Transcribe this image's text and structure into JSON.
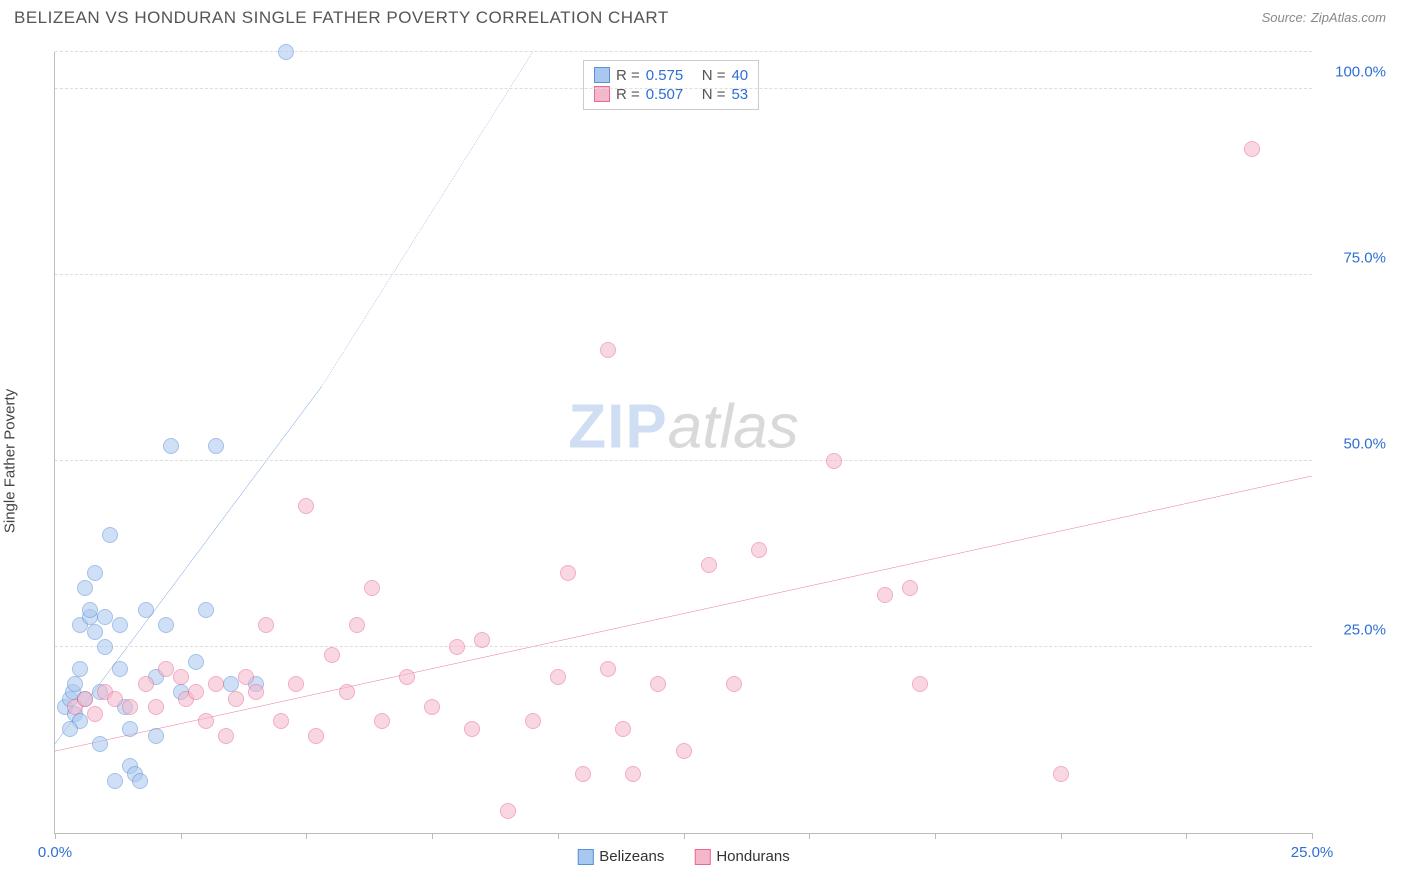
{
  "header": {
    "title": "BELIZEAN VS HONDURAN SINGLE FATHER POVERTY CORRELATION CHART",
    "source_label": "Source:",
    "source_name": "ZipAtlas.com"
  },
  "ylabel": "Single Father Poverty",
  "watermark": {
    "zip": "ZIP",
    "atlas": "atlas"
  },
  "chart": {
    "type": "scatter",
    "xlim": [
      0,
      25
    ],
    "ylim": [
      0,
      105
    ],
    "x_ticks": [
      0,
      2.5,
      5,
      7.5,
      10,
      12.5,
      15,
      17.5,
      20,
      22.5,
      25
    ],
    "x_tick_labels": {
      "0": "0.0%",
      "25": "25.0%"
    },
    "y_gridlines": [
      25,
      50,
      75,
      100,
      105
    ],
    "y_tick_labels": {
      "25": "25.0%",
      "50": "50.0%",
      "75": "75.0%",
      "100": "100.0%"
    },
    "x_label_color": "#2e6fd4",
    "y_label_color": "#2e6fd4",
    "grid_color": "#dddddd",
    "axis_color": "#bbbbbb",
    "background_color": "#ffffff",
    "point_radius": 8,
    "point_opacity": 0.55,
    "series": [
      {
        "name": "Belizeans",
        "color_fill": "#a8c8f0",
        "color_stroke": "#5b8fd6",
        "R": "0.575",
        "N": "40",
        "trend": {
          "x1": 0,
          "y1": 12,
          "x2": 5.3,
          "y2": 60,
          "dash_to_x": 9.5,
          "dash_to_y": 105,
          "stroke": "#2e6fd4",
          "width": 2
        },
        "points": [
          [
            0.2,
            17
          ],
          [
            0.3,
            18
          ],
          [
            0.35,
            19
          ],
          [
            0.4,
            16
          ],
          [
            0.4,
            20
          ],
          [
            0.5,
            15
          ],
          [
            0.5,
            22
          ],
          [
            0.5,
            28
          ],
          [
            0.6,
            18
          ],
          [
            0.7,
            29
          ],
          [
            0.7,
            30
          ],
          [
            0.8,
            27
          ],
          [
            0.8,
            35
          ],
          [
            0.9,
            19
          ],
          [
            1.0,
            29
          ],
          [
            1.0,
            25
          ],
          [
            1.1,
            40
          ],
          [
            1.2,
            7
          ],
          [
            1.3,
            28
          ],
          [
            1.3,
            22
          ],
          [
            1.5,
            9
          ],
          [
            1.5,
            14
          ],
          [
            1.6,
            8
          ],
          [
            1.7,
            7
          ],
          [
            1.8,
            30
          ],
          [
            2.0,
            21
          ],
          [
            2.0,
            13
          ],
          [
            2.2,
            28
          ],
          [
            2.3,
            52
          ],
          [
            2.5,
            19
          ],
          [
            2.8,
            23
          ],
          [
            3.0,
            30
          ],
          [
            3.2,
            52
          ],
          [
            3.5,
            20
          ],
          [
            4.0,
            20
          ],
          [
            4.6,
            105
          ],
          [
            0.3,
            14
          ],
          [
            0.6,
            33
          ],
          [
            0.9,
            12
          ],
          [
            1.4,
            17
          ]
        ]
      },
      {
        "name": "Hondurans",
        "color_fill": "#f5b8cb",
        "color_stroke": "#e86a93",
        "R": "0.507",
        "N": "53",
        "trend": {
          "x1": 0,
          "y1": 11,
          "x2": 25,
          "y2": 48,
          "stroke": "#e13d73",
          "width": 2
        },
        "points": [
          [
            0.4,
            17
          ],
          [
            0.6,
            18
          ],
          [
            0.8,
            16
          ],
          [
            1.0,
            19
          ],
          [
            1.2,
            18
          ],
          [
            1.5,
            17
          ],
          [
            1.8,
            20
          ],
          [
            2.0,
            17
          ],
          [
            2.2,
            22
          ],
          [
            2.5,
            21
          ],
          [
            2.6,
            18
          ],
          [
            2.8,
            19
          ],
          [
            3.0,
            15
          ],
          [
            3.2,
            20
          ],
          [
            3.4,
            13
          ],
          [
            3.6,
            18
          ],
          [
            3.8,
            21
          ],
          [
            4.0,
            19
          ],
          [
            4.2,
            28
          ],
          [
            4.5,
            15
          ],
          [
            4.8,
            20
          ],
          [
            5.0,
            44
          ],
          [
            5.2,
            13
          ],
          [
            5.5,
            24
          ],
          [
            5.8,
            19
          ],
          [
            6.0,
            28
          ],
          [
            6.3,
            33
          ],
          [
            6.5,
            15
          ],
          [
            7.0,
            21
          ],
          [
            7.5,
            17
          ],
          [
            8.0,
            25
          ],
          [
            8.3,
            14
          ],
          [
            8.5,
            26
          ],
          [
            9.0,
            3
          ],
          [
            9.5,
            15
          ],
          [
            10.0,
            21
          ],
          [
            10.2,
            35
          ],
          [
            10.5,
            8
          ],
          [
            11.0,
            65
          ],
          [
            11.0,
            22
          ],
          [
            11.3,
            14
          ],
          [
            11.5,
            8
          ],
          [
            12.0,
            20
          ],
          [
            12.5,
            11
          ],
          [
            13.0,
            36
          ],
          [
            13.5,
            20
          ],
          [
            14.0,
            38
          ],
          [
            15.5,
            50
          ],
          [
            16.5,
            32
          ],
          [
            17.0,
            33
          ],
          [
            17.2,
            20
          ],
          [
            20.0,
            8
          ],
          [
            23.8,
            92
          ]
        ]
      }
    ]
  },
  "legend_box": {
    "left_pct": 42,
    "top_pct": 1,
    "stat_label_color": "#555555",
    "value_color": "#2e6fd4",
    "R_label": "R =",
    "N_label": "N ="
  },
  "bottom_legend": true
}
